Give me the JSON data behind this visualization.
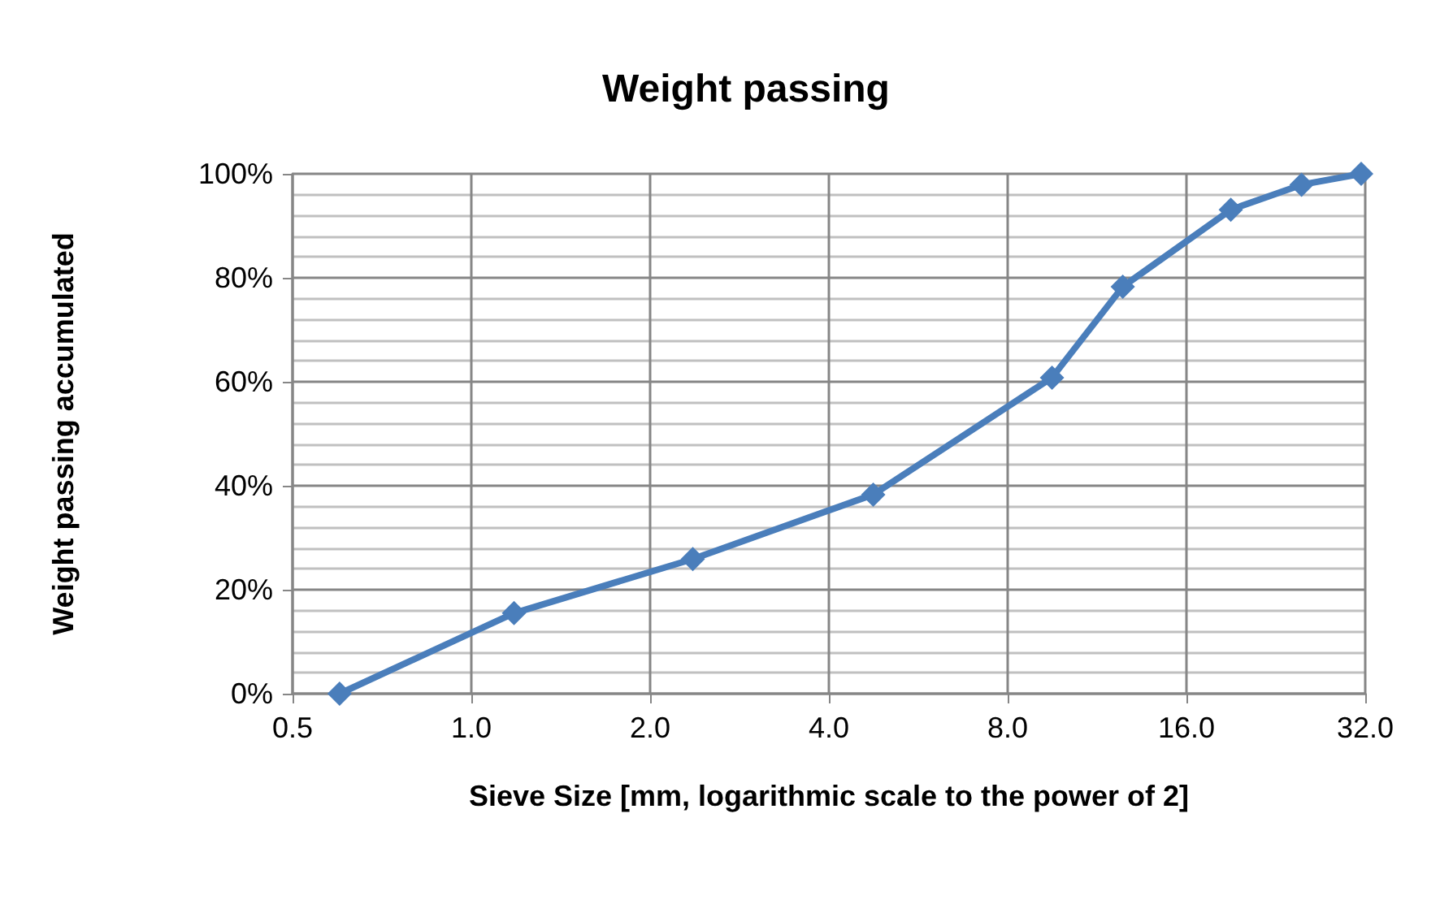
{
  "chart_data": {
    "type": "line",
    "title": "Weight passing",
    "xlabel": "Sieve Size [mm, logarithmic scale to the power of 2]",
    "ylabel": "Weight passing accumulated",
    "x": [
      0.6,
      1.18,
      2.36,
      4.75,
      9.5,
      12.5,
      19,
      25,
      31.5
    ],
    "series": [
      {
        "color": "#4a7ebb",
        "values": [
          0,
          15.5,
          25.9,
          38.3,
          60.8,
          78.3,
          93.1,
          97.9,
          100
        ]
      }
    ],
    "log": "x",
    "xlim": [
      0.5,
      32
    ],
    "xticks": [
      {
        "value": 0.5,
        "label": "0.5"
      },
      {
        "value": 1,
        "label": "1.0"
      },
      {
        "value": 2,
        "label": "2.0"
      },
      {
        "value": 4,
        "label": "4.0"
      },
      {
        "value": 8,
        "label": "8.0"
      },
      {
        "value": 16,
        "label": "16.0"
      },
      {
        "value": 32,
        "label": "32.0"
      }
    ],
    "ylim": [
      0,
      100
    ],
    "yticks": [
      {
        "value": 0,
        "label": "0%"
      },
      {
        "value": 20,
        "label": "20%"
      },
      {
        "value": 40,
        "label": "40%"
      },
      {
        "value": 60,
        "label": "60%"
      },
      {
        "value": 80,
        "label": "80%"
      },
      {
        "value": 100,
        "label": "100%"
      }
    ],
    "grid": true,
    "marker": "diamond",
    "line_style": "solid"
  }
}
